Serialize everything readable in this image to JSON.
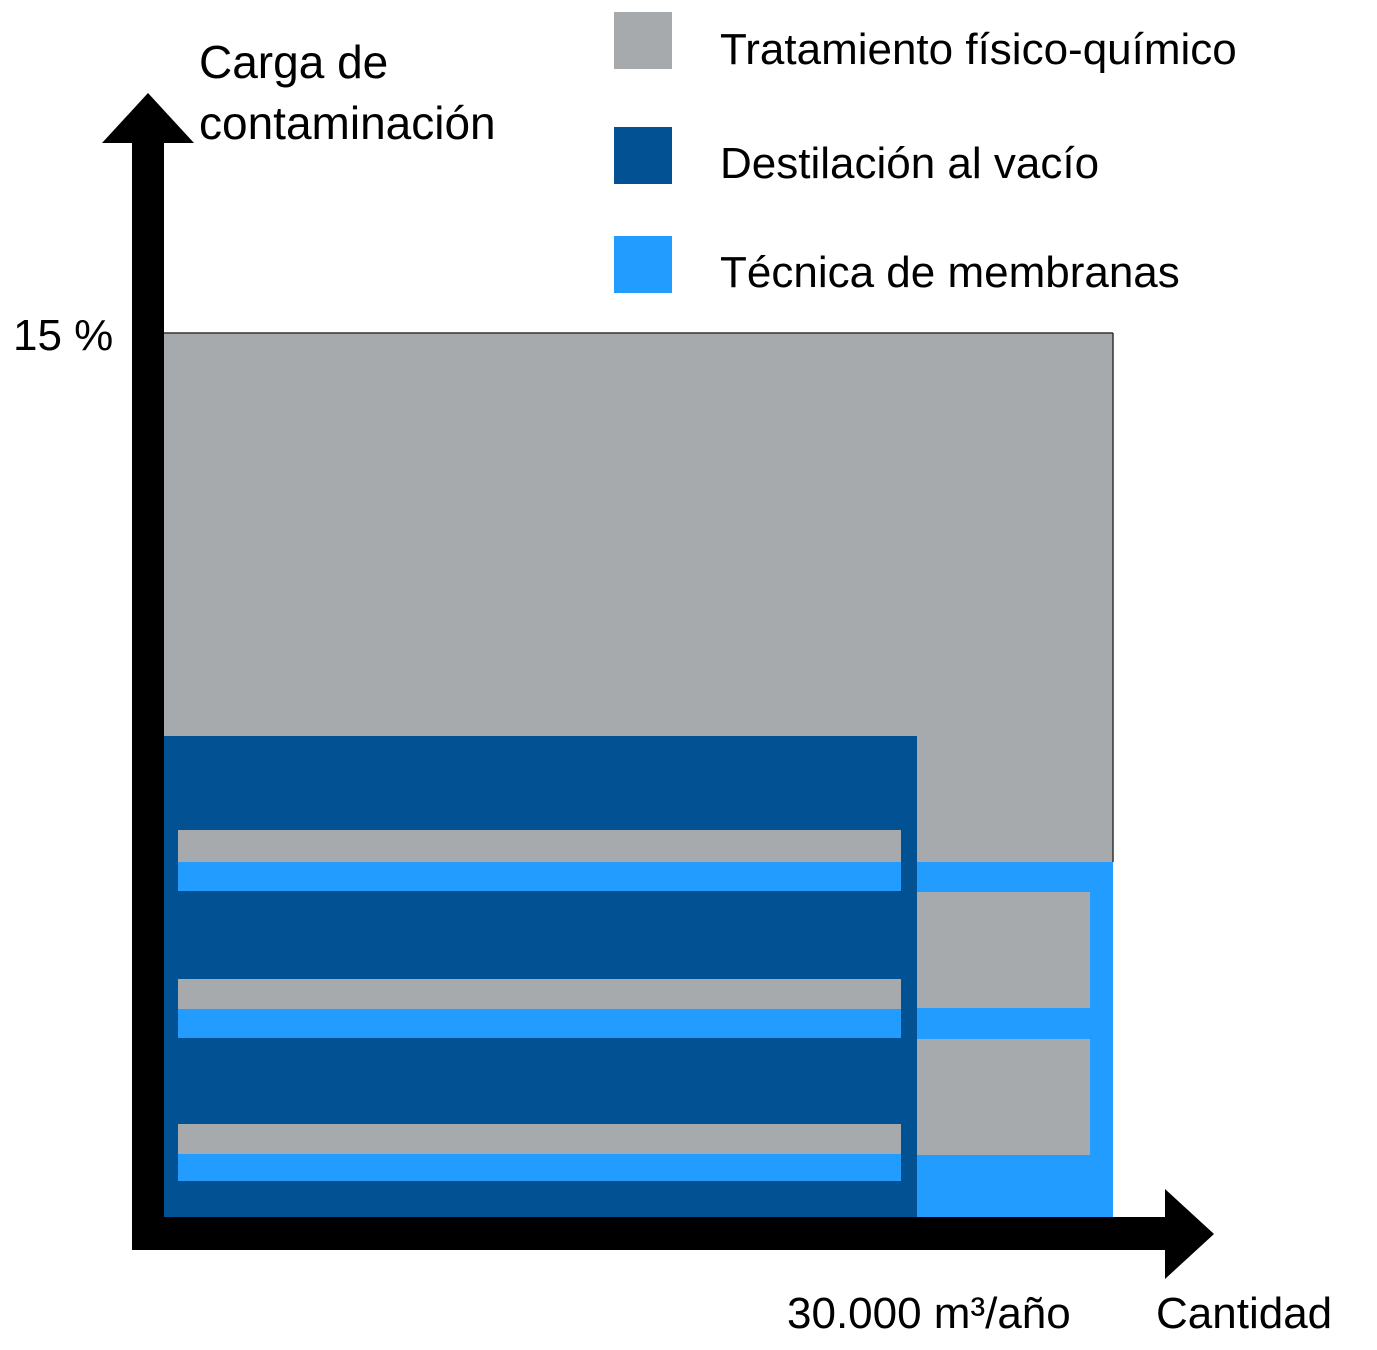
{
  "colors": {
    "physicochemical": "#a6aaad",
    "vacuum_distillation": "#025193",
    "membrane": "#229cff",
    "axis": "#000000"
  },
  "legend": {
    "physicochemical": "Tratamiento físico-químico",
    "vacuum_distillation": "Destilación al vacío",
    "membrane": "Técnica de membranas"
  },
  "y_axis": {
    "label_line1": "Carga de",
    "label_line2": "contaminación",
    "max_tick": "15 %"
  },
  "x_axis": {
    "label": "Cantidad",
    "max_tick": "30.000 m³/año"
  }
}
